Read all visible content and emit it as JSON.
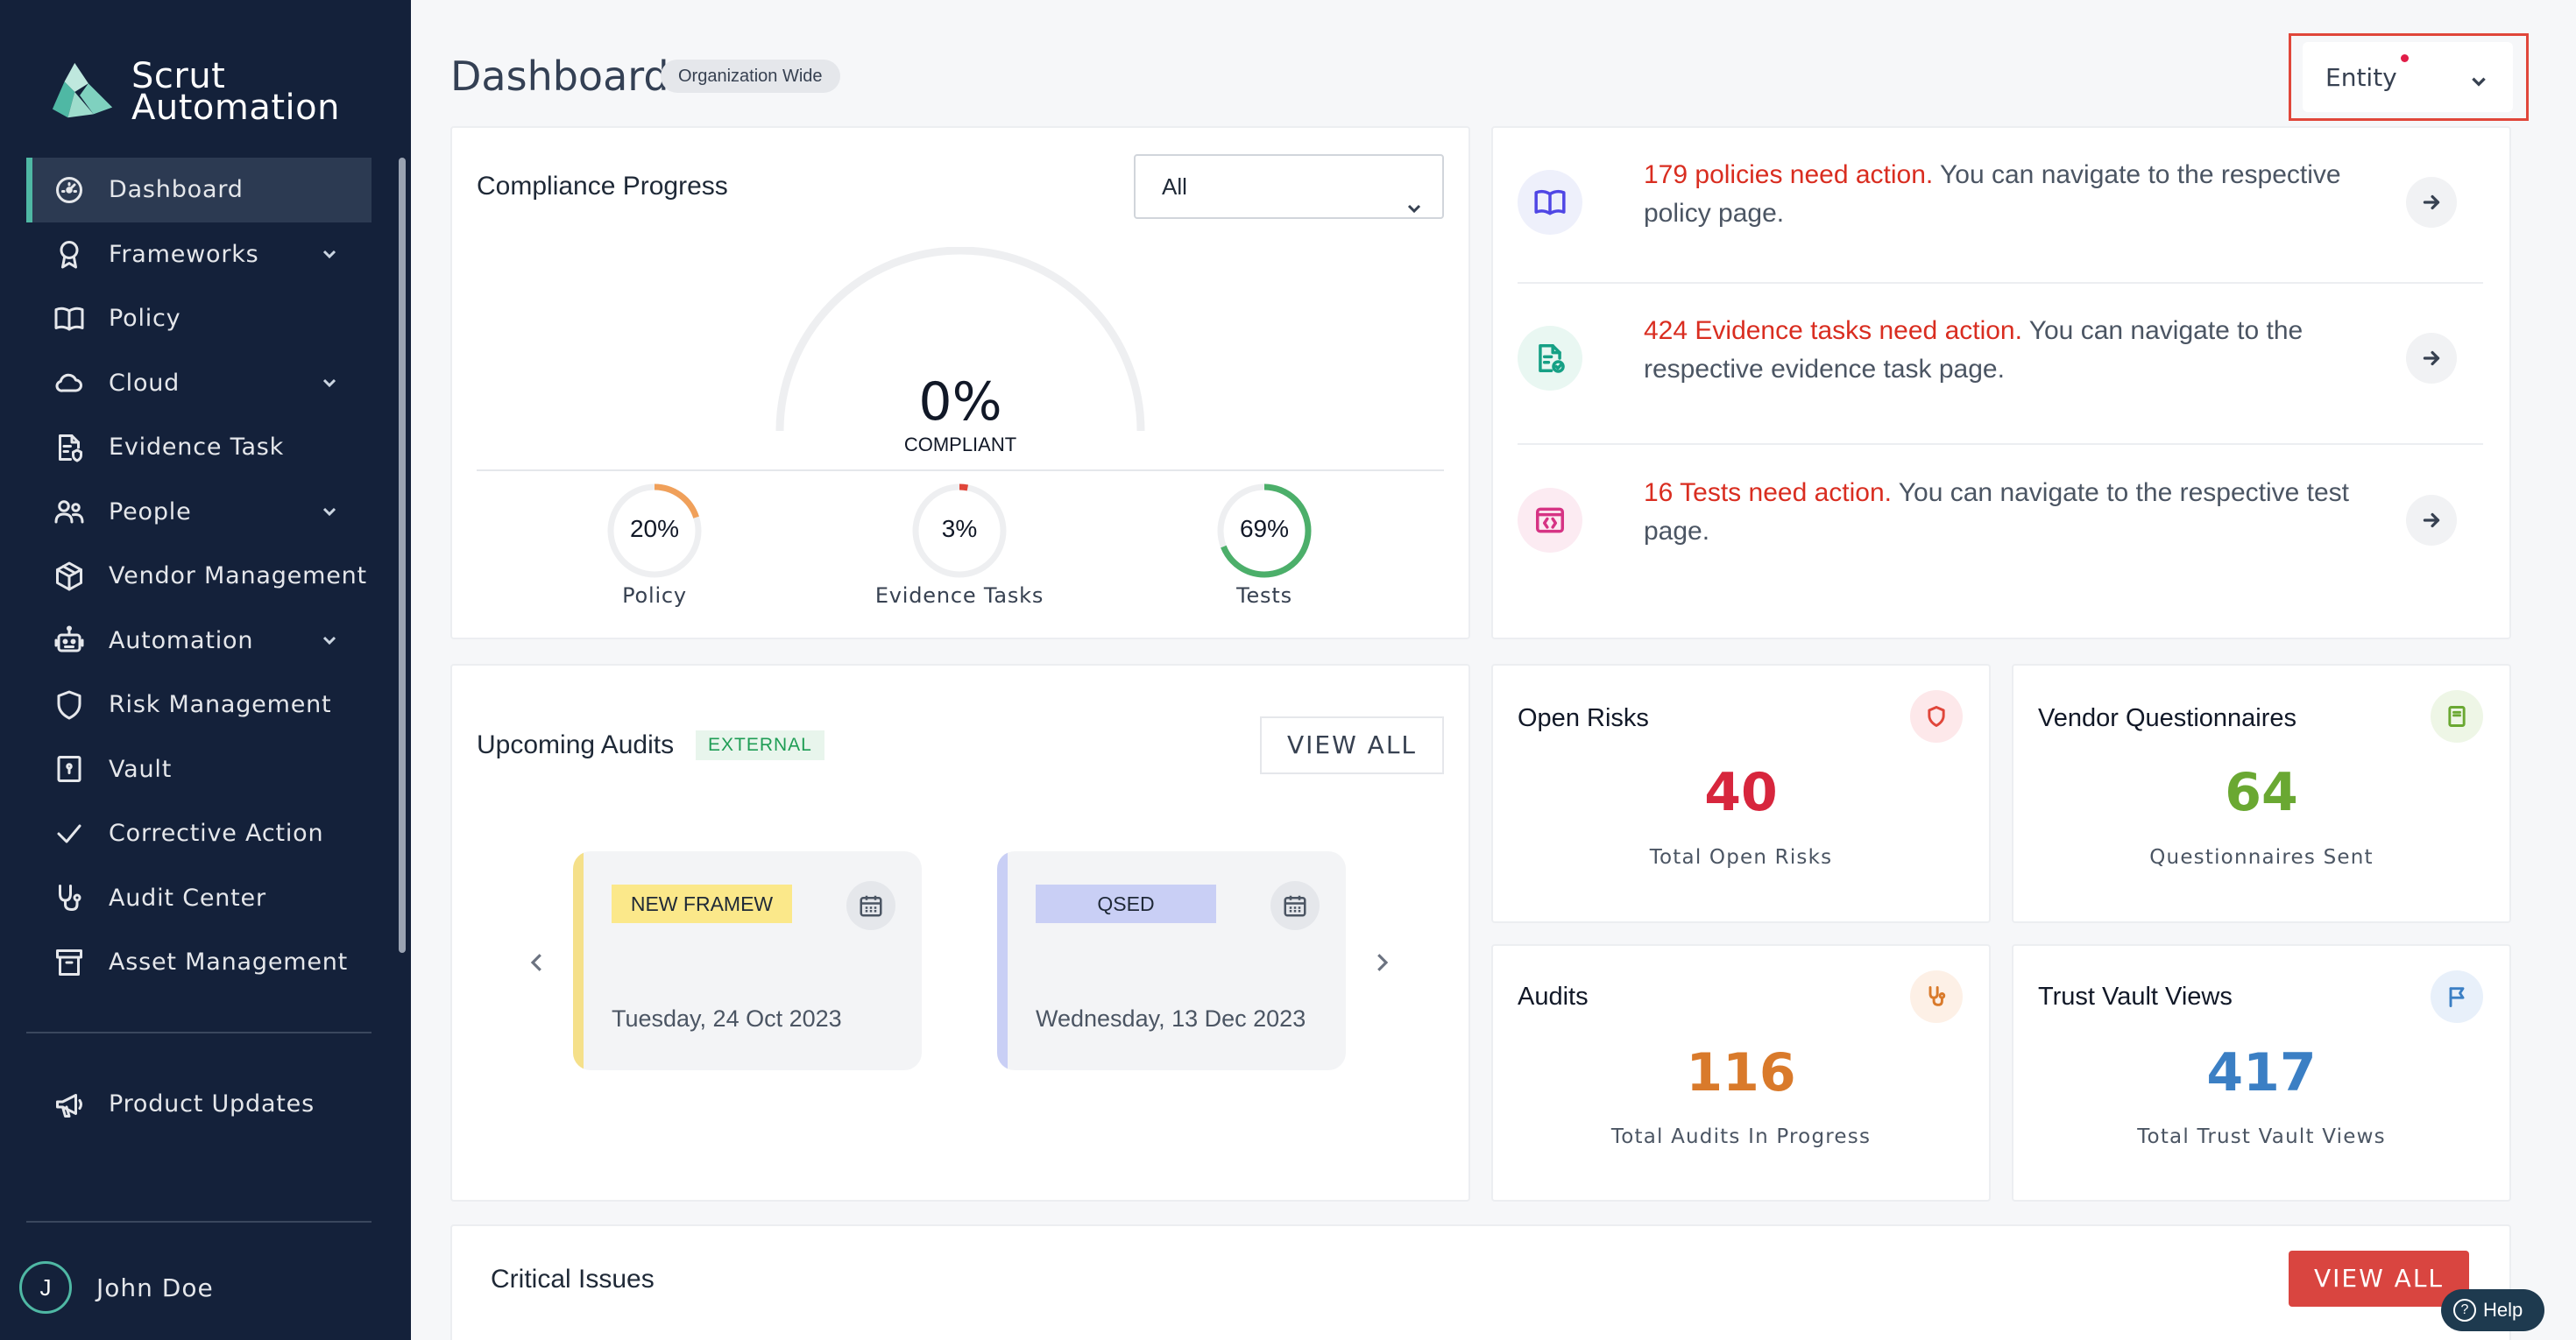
{
  "brand": {
    "line1": "Scrut",
    "line2": "Automation",
    "accent": "#4fb8a4"
  },
  "sidebar": {
    "items": [
      {
        "label": "Dashboard",
        "icon": "dashboard-icon",
        "active": true,
        "expandable": false
      },
      {
        "label": "Frameworks",
        "icon": "award-icon",
        "expandable": true
      },
      {
        "label": "Policy",
        "icon": "book-icon",
        "expandable": false
      },
      {
        "label": "Cloud",
        "icon": "cloud-icon",
        "expandable": true
      },
      {
        "label": "Evidence Task",
        "icon": "file-shield-icon",
        "expandable": false
      },
      {
        "label": "People",
        "icon": "people-icon",
        "expandable": true
      },
      {
        "label": "Vendor Management",
        "icon": "box-icon",
        "expandable": false
      },
      {
        "label": "Automation",
        "icon": "robot-icon",
        "expandable": true
      },
      {
        "label": "Risk Management",
        "icon": "shield-icon",
        "expandable": false
      },
      {
        "label": "Vault",
        "icon": "vault-icon",
        "expandable": false
      },
      {
        "label": "Corrective Action",
        "icon": "check-icon",
        "expandable": false
      },
      {
        "label": "Audit Center",
        "icon": "stethoscope-icon",
        "expandable": false
      },
      {
        "label": "Asset Management",
        "icon": "archive-icon",
        "expandable": false
      }
    ],
    "product_updates": "Product Updates",
    "user": {
      "initial": "J",
      "name": "John Doe"
    }
  },
  "header": {
    "title": "Dashboard",
    "badge": "Organization Wide",
    "entity_label": "Entity"
  },
  "compliance": {
    "title": "Compliance Progress",
    "filter_value": "All",
    "overall_pct": "0%",
    "overall_label": "COMPLIANT",
    "overall_fraction": 0,
    "metrics": [
      {
        "label": "Policy",
        "pct": "20%",
        "fraction": 0.2,
        "color": "#f0a05a"
      },
      {
        "label": "Evidence Tasks",
        "pct": "3%",
        "fraction": 0.03,
        "color": "#e0463a"
      },
      {
        "label": "Tests",
        "pct": "69%",
        "fraction": 0.69,
        "color": "#4caf6a"
      }
    ]
  },
  "actions": [
    {
      "highlight": "179 policies need action.",
      "rest": " You can navigate to the respective policy page.",
      "icon": "book-open-icon",
      "color": "#4f46e5",
      "bg": "#eef0fb"
    },
    {
      "highlight": "424 Evidence tasks need action.",
      "rest": " You can navigate to the respective evidence task page.",
      "icon": "file-check-icon",
      "color": "#16a085",
      "bg": "#e9f7f2"
    },
    {
      "highlight": "16 Tests need action.",
      "rest": " You can navigate to the respective test page.",
      "icon": "code-window-icon",
      "color": "#d63384",
      "bg": "#fcebf2"
    }
  ],
  "audits": {
    "title": "Upcoming Audits",
    "badge": "EXTERNAL",
    "view_all": "VIEW ALL",
    "items": [
      {
        "tag": "NEW FRAMEW",
        "date": "Tuesday, 24 Oct 2023",
        "bar": "#f5e08a",
        "tag_bg": "#fbe88a"
      },
      {
        "tag": "QSED",
        "date": "Wednesday, 13 Dec 2023",
        "bar": "#c9cff5",
        "tag_bg": "#c9cff5"
      }
    ]
  },
  "stats": [
    {
      "title": "Open Risks",
      "value": "40",
      "label": "Total Open Risks",
      "color": "#d7263d",
      "icon": "shield-icon",
      "icon_color": "#e0463a",
      "icon_bg": "#fde8ea"
    },
    {
      "title": "Vendor Questionnaires",
      "value": "64",
      "label": "Questionnaires Sent",
      "color": "#6aa832",
      "icon": "clipboard-icon",
      "icon_color": "#6aa832",
      "icon_bg": "#eef6e6"
    },
    {
      "title": "Audits",
      "value": "116",
      "label": "Total Audits In Progress",
      "color": "#d97a2b",
      "icon": "stethoscope-icon",
      "icon_color": "#d97a2b",
      "icon_bg": "#fdf0e6"
    },
    {
      "title": "Trust Vault Views",
      "value": "417",
      "label": "Total Trust Vault Views",
      "color": "#3b7fc4",
      "icon": "flag-icon",
      "icon_color": "#3b7fc4",
      "icon_bg": "#e8f0fa"
    }
  ],
  "critical": {
    "title": "Critical Issues",
    "view_all": "VIEW ALL"
  },
  "help": {
    "label": "Help"
  }
}
